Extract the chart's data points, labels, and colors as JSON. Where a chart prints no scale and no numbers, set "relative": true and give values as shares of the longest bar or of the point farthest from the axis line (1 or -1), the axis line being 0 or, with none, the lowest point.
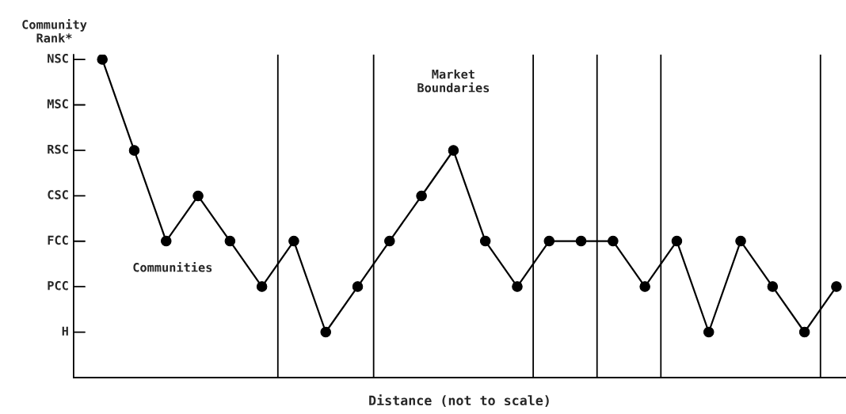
{
  "chart_data": {
    "type": "line",
    "ylabel": "Community\nRank*",
    "xlabel": "Distance (not to scale)",
    "categories": [
      null,
      null,
      null,
      null,
      null,
      null,
      null,
      null,
      null,
      null,
      null,
      null,
      null,
      null,
      null,
      null,
      null,
      null,
      null,
      null,
      null,
      null,
      null,
      null
    ],
    "series": [
      {
        "color": "#000000",
        "values": [
          1,
          0.714,
          0.429,
          0.571,
          0.429,
          0.286,
          0.429,
          0.143,
          0.286,
          0.429,
          0.571,
          0.714,
          0.429,
          0.286,
          0.429,
          0.429,
          0.429,
          0.286,
          0.429,
          0.143,
          0.429,
          0.286,
          0.143,
          0.286
        ]
      }
    ],
    "relative": true,
    "annotations": [
      "Market\nBoundaries",
      "Communities",
      "H",
      "PCC",
      "FCC",
      "CSC",
      "RSC",
      "MSC",
      "NSC"
    ],
    "marker": "circle",
    "line_style": "solid"
  }
}
